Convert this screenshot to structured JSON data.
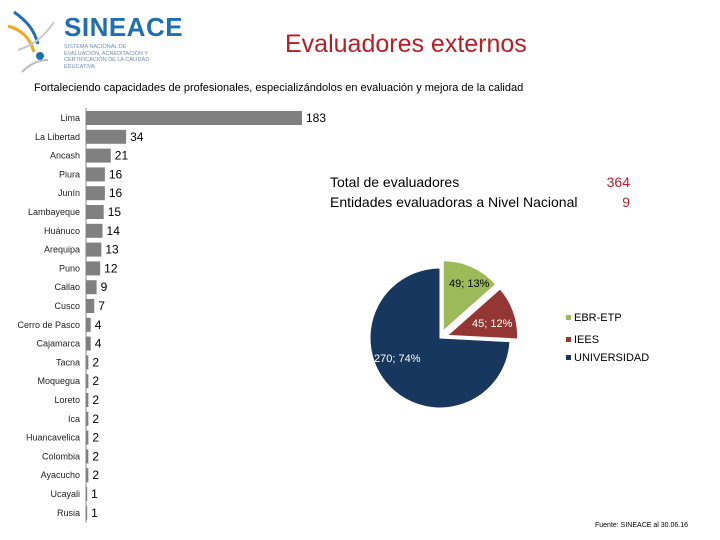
{
  "header": {
    "logo_name": "SINEACE",
    "logo_subtitle": "SISTEMA NACIONAL DE EVALUACIÓN, ACREDITACIÓN Y CERTIFICACIÓN DE LA CALIDAD EDUCATIVA",
    "title": "Evaluadores externos",
    "subtitle": "Fortaleciendo capacidades de profesionales, especializándolos en evaluación y mejora de la calidad"
  },
  "totals": {
    "evaluadores_label": "Total  de evaluadores",
    "evaluadores_value": "364",
    "entidades_label": "Entidades evaluadoras a Nivel Nacional",
    "entidades_value": "9"
  },
  "source": "Fuente: SINEACE al  30.06.16",
  "colors": {
    "bar": "#808080",
    "title": "#b81e25",
    "ebr": "#9bbb59",
    "iees": "#943634",
    "universidad": "#17375e"
  },
  "chart_data": [
    {
      "type": "bar",
      "orientation": "horizontal",
      "title": "",
      "categories": [
        "Lima",
        "La Libertad",
        "Ancash",
        "Piura",
        "Junín",
        "Lambayeque",
        "Huánuco",
        "Arequipa",
        "Puno",
        "Callao",
        "Cusco",
        "Cerro de Pasco",
        "Cajamarca",
        "Tacna",
        "Moquegua",
        "Loreto",
        "Ica",
        "Huancavelica",
        "Colombia",
        "Ayacucho",
        "Ucayali",
        "Rusia"
      ],
      "values": [
        183,
        34,
        21,
        16,
        16,
        15,
        14,
        13,
        12,
        9,
        7,
        4,
        4,
        2,
        2,
        2,
        2,
        2,
        2,
        2,
        1,
        1
      ],
      "xlabel": "",
      "ylabel": "",
      "xlim": [
        0,
        183
      ]
    },
    {
      "type": "pie",
      "labels": [
        "EBR-ETP",
        "IEES",
        "UNIVERSIDAD"
      ],
      "values": [
        49,
        45,
        270
      ],
      "data_labels": [
        "49; 13%",
        "45; 12%",
        "270; 74%"
      ],
      "legend": "right"
    }
  ]
}
